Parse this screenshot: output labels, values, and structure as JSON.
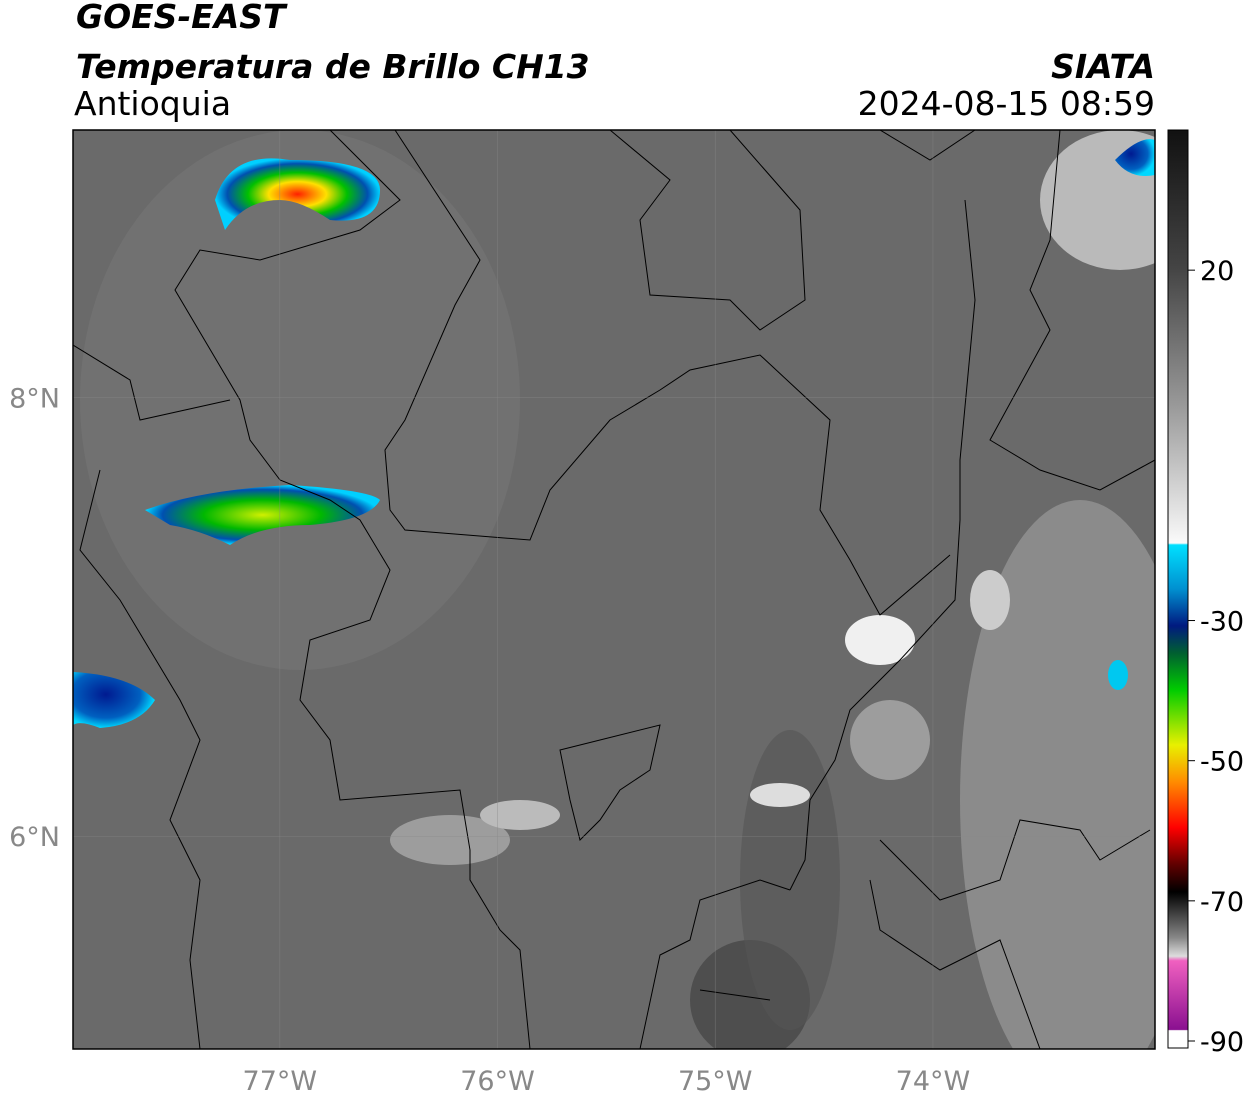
{
  "header": {
    "title": "GOES-EAST",
    "subtitle": "Temperatura de Brillo CH13",
    "region": "Antioquia",
    "source": "SIATA",
    "datetime": "2024-08-15 08:59"
  },
  "map": {
    "xlim": [
      -77.95,
      -72.98
    ],
    "ylim": [
      5.03,
      9.22
    ],
    "xticks": [
      {
        "value": -77,
        "label": "77°W"
      },
      {
        "value": -76,
        "label": "76°W"
      },
      {
        "value": -75,
        "label": "75°W"
      },
      {
        "value": -74,
        "label": "74°W"
      }
    ],
    "yticks": [
      {
        "value": 6,
        "label": "6°N"
      },
      {
        "value": 8,
        "label": "8°N"
      }
    ]
  },
  "colorbar": {
    "lim": [
      -91,
      40
    ],
    "ticks": [
      20,
      -30,
      -50,
      -70,
      -90
    ]
  }
}
